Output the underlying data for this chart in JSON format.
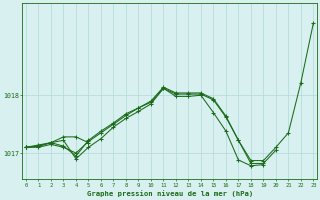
{
  "title": "Graphe pression niveau de la mer (hPa)",
  "bg_color": "#d8f0f0",
  "grid_color": "#b0d8d8",
  "line_color": "#1a6b1a",
  "x_labels": [
    "0",
    "1",
    "2",
    "3",
    "4",
    "5",
    "6",
    "7",
    "8",
    "9",
    "10",
    "11",
    "12",
    "13",
    "14",
    "15",
    "16",
    "17",
    "18",
    "19",
    "20",
    "21",
    "22",
    "23"
  ],
  "yticks": [
    1017,
    1018
  ],
  "ylim": [
    1016.55,
    1019.6
  ],
  "figsize": [
    3.2,
    2.0
  ],
  "dpi": 100,
  "series": [
    {
      "x": [
        0,
        1,
        2,
        3,
        4,
        5,
        6,
        7,
        8,
        9,
        10,
        11,
        12,
        13,
        14,
        15,
        16,
        17,
        18,
        19,
        20,
        21,
        22,
        23
      ],
      "y": [
        1017.1,
        1017.1,
        1017.15,
        1017.1,
        1017.0,
        1017.2,
        1017.35,
        1017.5,
        1017.65,
        1017.78,
        1017.88,
        1018.12,
        1018.02,
        1018.02,
        1018.02,
        1017.92,
        1017.62,
        1017.22,
        1016.87,
        1016.87,
        1017.1,
        1017.35,
        1018.22,
        1019.25
      ]
    },
    {
      "x": [
        0,
        1,
        2,
        3,
        4,
        5,
        6,
        7,
        8,
        9,
        10,
        11,
        12,
        13,
        14,
        15,
        16,
        17,
        18,
        19,
        20
      ],
      "y": [
        1017.1,
        1017.12,
        1017.18,
        1017.12,
        1016.95,
        1017.22,
        1017.38,
        1017.52,
        1017.68,
        1017.78,
        1017.9,
        1018.14,
        1018.04,
        1018.04,
        1018.04,
        1017.94,
        1017.64,
        1017.22,
        1016.82,
        1016.82,
        1017.05
      ]
    },
    {
      "x": [
        0,
        1,
        2,
        3,
        4,
        5
      ],
      "y": [
        1017.1,
        1017.12,
        1017.18,
        1017.28,
        1017.28,
        1017.18
      ]
    },
    {
      "x": [
        0,
        1,
        2,
        3,
        4,
        5,
        6,
        7,
        8,
        9,
        10,
        11,
        12,
        13,
        14,
        15,
        16,
        17,
        18,
        19
      ],
      "y": [
        1017.1,
        1017.14,
        1017.18,
        1017.22,
        1016.9,
        1017.1,
        1017.25,
        1017.45,
        1017.6,
        1017.72,
        1017.85,
        1018.12,
        1017.98,
        1017.98,
        1018.0,
        1017.7,
        1017.38,
        1016.88,
        1016.78,
        1016.8
      ]
    }
  ]
}
